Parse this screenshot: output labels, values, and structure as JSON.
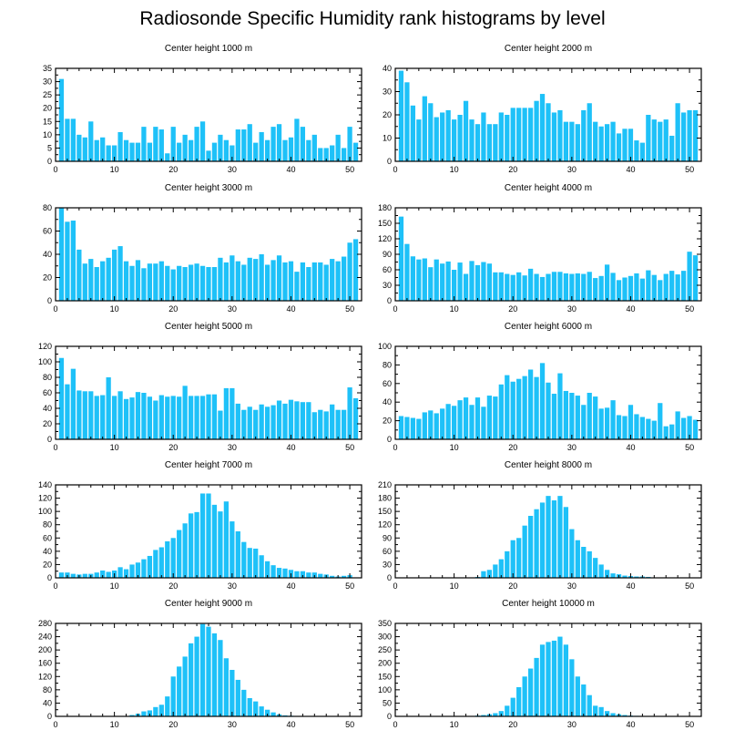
{
  "title": "Radiosonde Specific Humidity rank histograms by level",
  "colors": {
    "bar": "#1ec1f8",
    "axis": "#000000",
    "background": "#ffffff"
  },
  "chart_data": [
    {
      "type": "bar",
      "title": "Center height 1000 m",
      "ylim": [
        0,
        35
      ],
      "yticks": [
        0,
        5,
        10,
        15,
        20,
        25,
        30,
        35
      ],
      "xlim": [
        0,
        52
      ],
      "xticks": [
        0,
        10,
        20,
        30,
        40,
        50
      ],
      "x": [
        1,
        2,
        3,
        4,
        5,
        6,
        7,
        8,
        9,
        10,
        11,
        12,
        13,
        14,
        15,
        16,
        17,
        18,
        19,
        20,
        21,
        22,
        23,
        24,
        25,
        26,
        27,
        28,
        29,
        30,
        31,
        32,
        33,
        34,
        35,
        36,
        37,
        38,
        39,
        40,
        41,
        42,
        43,
        44,
        45,
        46,
        47,
        48,
        49,
        50,
        51
      ],
      "values": [
        31,
        16,
        16,
        10,
        9,
        15,
        8,
        9,
        6,
        6,
        11,
        8,
        7,
        7,
        13,
        7,
        13,
        12,
        3,
        13,
        7,
        10,
        8,
        13,
        15,
        4,
        7,
        10,
        8,
        6,
        12,
        12,
        14,
        7,
        11,
        8,
        13,
        14,
        8,
        9,
        16,
        13,
        8,
        10,
        5,
        5,
        6,
        10,
        5,
        13,
        7
      ]
    },
    {
      "type": "bar",
      "title": "Center height 2000 m",
      "ylim": [
        0,
        40
      ],
      "yticks": [
        0,
        10,
        20,
        30,
        40
      ],
      "xlim": [
        0,
        52
      ],
      "xticks": [
        0,
        10,
        20,
        30,
        40,
        50
      ],
      "x": [
        1,
        2,
        3,
        4,
        5,
        6,
        7,
        8,
        9,
        10,
        11,
        12,
        13,
        14,
        15,
        16,
        17,
        18,
        19,
        20,
        21,
        22,
        23,
        24,
        25,
        26,
        27,
        28,
        29,
        30,
        31,
        32,
        33,
        34,
        35,
        36,
        37,
        38,
        39,
        40,
        41,
        42,
        43,
        44,
        45,
        46,
        47,
        48,
        49,
        50,
        51
      ],
      "values": [
        39,
        34,
        24,
        18,
        28,
        25,
        19,
        21,
        22,
        18,
        20,
        26,
        18,
        16,
        21,
        16,
        16,
        21,
        20,
        23,
        23,
        23,
        23,
        26,
        29,
        25,
        21,
        22,
        17,
        17,
        16,
        22,
        25,
        17,
        15,
        16,
        17,
        12,
        14,
        14,
        9,
        8,
        20,
        18,
        17,
        18,
        11,
        25,
        21,
        22,
        22
      ]
    },
    {
      "type": "bar",
      "title": "Center height 3000 m",
      "ylim": [
        0,
        80
      ],
      "yticks": [
        0,
        20,
        40,
        60,
        80
      ],
      "xlim": [
        0,
        52
      ],
      "xticks": [
        0,
        10,
        20,
        30,
        40,
        50
      ],
      "x": [
        1,
        2,
        3,
        4,
        5,
        6,
        7,
        8,
        9,
        10,
        11,
        12,
        13,
        14,
        15,
        16,
        17,
        18,
        19,
        20,
        21,
        22,
        23,
        24,
        25,
        26,
        27,
        28,
        29,
        30,
        31,
        32,
        33,
        34,
        35,
        36,
        37,
        38,
        39,
        40,
        41,
        42,
        43,
        44,
        45,
        46,
        47,
        48,
        49,
        50,
        51
      ],
      "values": [
        80,
        68,
        69,
        44,
        32,
        36,
        29,
        34,
        37,
        44,
        47,
        34,
        30,
        35,
        28,
        32,
        32,
        34,
        30,
        27,
        30,
        29,
        31,
        32,
        30,
        29,
        29,
        37,
        33,
        39,
        34,
        31,
        37,
        36,
        40,
        31,
        35,
        39,
        33,
        34,
        25,
        33,
        29,
        33,
        33,
        31,
        36,
        34,
        38,
        50,
        53
      ]
    },
    {
      "type": "bar",
      "title": "Center height 4000 m",
      "ylim": [
        0,
        180
      ],
      "yticks": [
        0,
        30,
        60,
        90,
        120,
        150,
        180
      ],
      "xlim": [
        0,
        52
      ],
      "xticks": [
        0,
        10,
        20,
        30,
        40,
        50
      ],
      "x": [
        1,
        2,
        3,
        4,
        5,
        6,
        7,
        8,
        9,
        10,
        11,
        12,
        13,
        14,
        15,
        16,
        17,
        18,
        19,
        20,
        21,
        22,
        23,
        24,
        25,
        26,
        27,
        28,
        29,
        30,
        31,
        32,
        33,
        34,
        35,
        36,
        37,
        38,
        39,
        40,
        41,
        42,
        43,
        44,
        45,
        46,
        47,
        48,
        49,
        50,
        51
      ],
      "values": [
        163,
        110,
        86,
        80,
        82,
        65,
        80,
        72,
        76,
        60,
        74,
        52,
        77,
        69,
        75,
        72,
        55,
        55,
        52,
        50,
        55,
        49,
        62,
        52,
        46,
        52,
        56,
        56,
        53,
        52,
        53,
        52,
        56,
        44,
        48,
        70,
        54,
        40,
        45,
        48,
        53,
        43,
        59,
        50,
        40,
        52,
        58,
        51,
        58,
        95,
        88
      ]
    },
    {
      "type": "bar",
      "title": "Center height 5000 m",
      "ylim": [
        0,
        120
      ],
      "yticks": [
        0,
        20,
        40,
        60,
        80,
        100,
        120
      ],
      "xlim": [
        0,
        52
      ],
      "xticks": [
        0,
        10,
        20,
        30,
        40,
        50
      ],
      "x": [
        1,
        2,
        3,
        4,
        5,
        6,
        7,
        8,
        9,
        10,
        11,
        12,
        13,
        14,
        15,
        16,
        17,
        18,
        19,
        20,
        21,
        22,
        23,
        24,
        25,
        26,
        27,
        28,
        29,
        30,
        31,
        32,
        33,
        34,
        35,
        36,
        37,
        38,
        39,
        40,
        41,
        42,
        43,
        44,
        45,
        46,
        47,
        48,
        49,
        50,
        51
      ],
      "values": [
        105,
        71,
        91,
        63,
        62,
        62,
        56,
        57,
        80,
        56,
        62,
        52,
        54,
        61,
        60,
        55,
        50,
        57,
        55,
        56,
        55,
        69,
        56,
        56,
        56,
        58,
        58,
        37,
        66,
        66,
        46,
        38,
        42,
        38,
        45,
        42,
        44,
        50,
        46,
        51,
        49,
        48,
        48,
        35,
        38,
        36,
        45,
        38,
        38,
        67,
        53
      ]
    },
    {
      "type": "bar",
      "title": "Center height 6000 m",
      "ylim": [
        0,
        100
      ],
      "yticks": [
        0,
        20,
        40,
        60,
        80,
        100
      ],
      "xlim": [
        0,
        52
      ],
      "xticks": [
        0,
        10,
        20,
        30,
        40,
        50
      ],
      "x": [
        1,
        2,
        3,
        4,
        5,
        6,
        7,
        8,
        9,
        10,
        11,
        12,
        13,
        14,
        15,
        16,
        17,
        18,
        19,
        20,
        21,
        22,
        23,
        24,
        25,
        26,
        27,
        28,
        29,
        30,
        31,
        32,
        33,
        34,
        35,
        36,
        37,
        38,
        39,
        40,
        41,
        42,
        43,
        44,
        45,
        46,
        47,
        48,
        49,
        50,
        51
      ],
      "values": [
        25,
        24,
        23,
        22,
        29,
        31,
        28,
        33,
        38,
        36,
        42,
        45,
        37,
        45,
        35,
        47,
        46,
        59,
        69,
        62,
        65,
        68,
        75,
        67,
        82,
        61,
        49,
        71,
        52,
        50,
        47,
        37,
        50,
        46,
        33,
        34,
        42,
        26,
        25,
        37,
        27,
        24,
        22,
        20,
        39,
        14,
        16,
        30,
        23,
        25,
        21
      ]
    },
    {
      "type": "bar",
      "title": "Center height 7000 m",
      "ylim": [
        0,
        140
      ],
      "yticks": [
        0,
        20,
        40,
        60,
        80,
        100,
        120,
        140
      ],
      "xlim": [
        0,
        52
      ],
      "xticks": [
        0,
        10,
        20,
        30,
        40,
        50
      ],
      "x": [
        1,
        2,
        3,
        4,
        5,
        6,
        7,
        8,
        9,
        10,
        11,
        12,
        13,
        14,
        15,
        16,
        17,
        18,
        19,
        20,
        21,
        22,
        23,
        24,
        25,
        26,
        27,
        28,
        29,
        30,
        31,
        32,
        33,
        34,
        35,
        36,
        37,
        38,
        39,
        40,
        41,
        42,
        43,
        44,
        45,
        46,
        47,
        48,
        49,
        50,
        51
      ],
      "values": [
        8,
        8,
        6,
        5,
        6,
        6,
        8,
        11,
        9,
        11,
        16,
        13,
        20,
        23,
        28,
        33,
        42,
        46,
        55,
        60,
        72,
        82,
        97,
        99,
        127,
        127,
        110,
        100,
        115,
        85,
        70,
        54,
        45,
        44,
        34,
        25,
        19,
        15,
        14,
        12,
        10,
        10,
        8,
        8,
        6,
        5,
        3,
        2,
        3,
        4,
        0
      ]
    },
    {
      "type": "bar",
      "title": "Center height 8000 m",
      "ylim": [
        0,
        210
      ],
      "yticks": [
        0,
        30,
        60,
        90,
        120,
        150,
        180,
        210
      ],
      "xlim": [
        0,
        52
      ],
      "xticks": [
        0,
        10,
        20,
        30,
        40,
        50
      ],
      "x": [
        1,
        2,
        3,
        4,
        5,
        6,
        7,
        8,
        9,
        10,
        11,
        12,
        13,
        14,
        15,
        16,
        17,
        18,
        19,
        20,
        21,
        22,
        23,
        24,
        25,
        26,
        27,
        28,
        29,
        30,
        31,
        32,
        33,
        34,
        35,
        36,
        37,
        38,
        39,
        40,
        41,
        42,
        43,
        44,
        45,
        46,
        47,
        48,
        49,
        50,
        51
      ],
      "values": [
        0,
        0,
        0,
        0,
        0,
        0,
        0,
        0,
        0,
        0,
        0,
        0,
        1,
        2,
        15,
        18,
        30,
        42,
        60,
        85,
        90,
        118,
        140,
        155,
        170,
        185,
        175,
        185,
        160,
        110,
        85,
        70,
        60,
        45,
        30,
        18,
        10,
        8,
        5,
        4,
        3,
        3,
        2,
        1,
        0,
        0,
        0,
        0,
        0,
        0,
        0
      ]
    },
    {
      "type": "bar",
      "title": "Center height 9000 m",
      "ylim": [
        0,
        280
      ],
      "yticks": [
        0,
        40,
        80,
        120,
        160,
        200,
        240,
        280
      ],
      "xlim": [
        0,
        52
      ],
      "xticks": [
        0,
        10,
        20,
        30,
        40,
        50
      ],
      "x": [
        1,
        2,
        3,
        4,
        5,
        6,
        7,
        8,
        9,
        10,
        11,
        12,
        13,
        14,
        15,
        16,
        17,
        18,
        19,
        20,
        21,
        22,
        23,
        24,
        25,
        26,
        27,
        28,
        29,
        30,
        31,
        32,
        33,
        34,
        35,
        36,
        37,
        38,
        39,
        40,
        41,
        42,
        43,
        44,
        45,
        46,
        47,
        48,
        49,
        50,
        51
      ],
      "values": [
        0,
        0,
        0,
        0,
        0,
        0,
        0,
        0,
        0,
        0,
        0,
        1,
        4,
        8,
        15,
        18,
        28,
        35,
        60,
        120,
        150,
        180,
        220,
        240,
        278,
        270,
        250,
        230,
        175,
        140,
        110,
        80,
        55,
        45,
        30,
        20,
        12,
        6,
        3,
        2,
        1,
        0,
        0,
        0,
        0,
        0,
        0,
        0,
        0,
        0,
        0
      ]
    },
    {
      "type": "bar",
      "title": "Center height 10000 m",
      "ylim": [
        0,
        350
      ],
      "yticks": [
        0,
        50,
        100,
        150,
        200,
        250,
        300,
        350
      ],
      "xlim": [
        0,
        52
      ],
      "xticks": [
        0,
        10,
        20,
        30,
        40,
        50
      ],
      "x": [
        1,
        2,
        3,
        4,
        5,
        6,
        7,
        8,
        9,
        10,
        11,
        12,
        13,
        14,
        15,
        16,
        17,
        18,
        19,
        20,
        21,
        22,
        23,
        24,
        25,
        26,
        27,
        28,
        29,
        30,
        31,
        32,
        33,
        34,
        35,
        36,
        37,
        38,
        39,
        40,
        41,
        42,
        43,
        44,
        45,
        46,
        47,
        48,
        49,
        50,
        51
      ],
      "values": [
        0,
        0,
        0,
        0,
        0,
        0,
        0,
        0,
        0,
        0,
        0,
        0,
        1,
        3,
        5,
        8,
        12,
        20,
        40,
        70,
        110,
        150,
        180,
        220,
        270,
        280,
        285,
        300,
        270,
        215,
        150,
        120,
        80,
        40,
        35,
        20,
        12,
        8,
        5,
        3,
        2,
        1,
        0,
        0,
        0,
        0,
        0,
        0,
        0,
        0,
        0
      ]
    }
  ]
}
